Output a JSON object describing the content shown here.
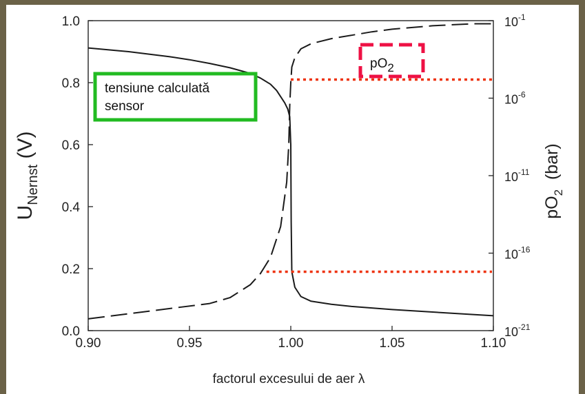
{
  "chart_data": {
    "type": "line",
    "title": "",
    "xlabel": "factorul excesului de aer λ",
    "ylabel": {
      "main": "U",
      "sub": "Nernst",
      "unit": " (V)"
    },
    "y2label": {
      "main": "pO",
      "sub": "2",
      "unit": "  (bar)"
    },
    "xlim": [
      0.9,
      1.1
    ],
    "ylim": [
      0.0,
      1.0
    ],
    "y2lim_exponent": [
      -21,
      -1
    ],
    "x_ticks": [
      "0.90",
      "0.95",
      "1.00",
      "1.05",
      "1.10"
    ],
    "x_tick_values": [
      0.9,
      0.95,
      1.0,
      1.05,
      1.1
    ],
    "y_ticks": [
      "0.0",
      "0.2",
      "0.4",
      "0.6",
      "0.8",
      "1.0"
    ],
    "y_tick_values": [
      0.0,
      0.2,
      0.4,
      0.6,
      0.8,
      1.0
    ],
    "y2_ticks": [
      {
        "base": "10",
        "exp": "-1",
        "value": -1
      },
      {
        "base": "10",
        "exp": "-6",
        "value": -6
      },
      {
        "base": "10",
        "exp": "-11",
        "value": -11
      },
      {
        "base": "10",
        "exp": "-16",
        "value": -16
      },
      {
        "base": "10",
        "exp": "-21",
        "value": -21
      }
    ],
    "grid": false,
    "series": [
      {
        "axis": "left",
        "style": "solid",
        "color": "#1a1a1a",
        "points": [
          [
            0.9,
            0.912
          ],
          [
            0.92,
            0.9
          ],
          [
            0.94,
            0.884
          ],
          [
            0.95,
            0.874
          ],
          [
            0.96,
            0.862
          ],
          [
            0.97,
            0.848
          ],
          [
            0.98,
            0.83
          ],
          [
            0.985,
            0.815
          ],
          [
            0.99,
            0.795
          ],
          [
            0.993,
            0.775
          ],
          [
            0.995,
            0.755
          ],
          [
            0.997,
            0.735
          ],
          [
            0.9985,
            0.715
          ],
          [
            0.9995,
            0.69
          ],
          [
            1.0,
            0.6
          ],
          [
            1.0002,
            0.35
          ],
          [
            1.0005,
            0.19
          ],
          [
            1.002,
            0.14
          ],
          [
            1.005,
            0.11
          ],
          [
            1.01,
            0.095
          ],
          [
            1.02,
            0.085
          ],
          [
            1.03,
            0.078
          ],
          [
            1.05,
            0.068
          ],
          [
            1.07,
            0.06
          ],
          [
            1.09,
            0.052
          ],
          [
            1.1,
            0.048
          ]
        ]
      },
      {
        "axis": "right",
        "style": "dashed",
        "color": "#1a1a1a",
        "points": [
          [
            0.9,
            -20.24
          ],
          [
            0.92,
            -19.91
          ],
          [
            0.94,
            -19.58
          ],
          [
            0.96,
            -19.25
          ],
          [
            0.97,
            -18.87
          ],
          [
            0.98,
            -18.04
          ],
          [
            0.985,
            -17.32
          ],
          [
            0.99,
            -16.27
          ],
          [
            0.995,
            -14.28
          ],
          [
            0.998,
            -11.41
          ],
          [
            0.999,
            -8.98
          ],
          [
            0.9995,
            -6.49
          ],
          [
            1.0,
            -5.0
          ],
          [
            1.0005,
            -3.99
          ],
          [
            1.002,
            -3.38
          ],
          [
            1.005,
            -2.82
          ],
          [
            1.01,
            -2.49
          ],
          [
            1.02,
            -2.16
          ],
          [
            1.03,
            -1.94
          ],
          [
            1.04,
            -1.72
          ],
          [
            1.05,
            -1.55
          ],
          [
            1.06,
            -1.44
          ],
          [
            1.07,
            -1.33
          ],
          [
            1.08,
            -1.26
          ],
          [
            1.09,
            -1.2
          ],
          [
            1.1,
            -1.2
          ]
        ]
      }
    ],
    "reference_lines": [
      {
        "style": "dotted",
        "color": "#ee3311",
        "y": 0.81,
        "x_from": 1.0,
        "x_to": 1.1
      },
      {
        "style": "dotted",
        "color": "#ee3311",
        "y": 0.19,
        "x_from": 0.988,
        "x_to": 1.1
      }
    ],
    "annotations": [
      {
        "id": "sensor",
        "lines": [
          "tensiune calculată",
          "sensor"
        ],
        "border_color": "#22bb22",
        "border_style": "solid"
      },
      {
        "id": "po2",
        "main": "pO",
        "sub": "2",
        "border_color": "#ee1144",
        "border_style": "dashed"
      }
    ]
  }
}
